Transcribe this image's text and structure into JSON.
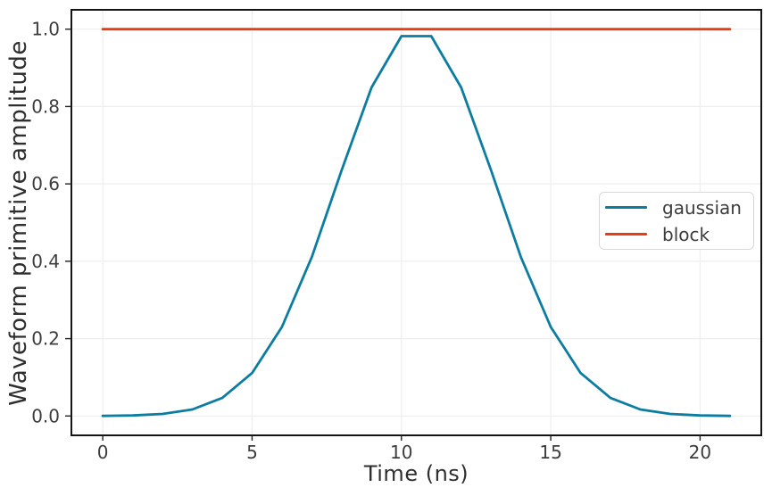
{
  "chart_data": {
    "type": "line",
    "title": "",
    "xlabel": "Time (ns)",
    "ylabel": "Waveform primitive amplitude",
    "x": [
      0,
      1,
      2,
      3,
      4,
      5,
      6,
      7,
      8,
      9,
      10,
      11,
      12,
      13,
      14,
      15,
      16,
      17,
      18,
      19,
      20,
      21
    ],
    "series": [
      {
        "name": "gaussian",
        "color": "#0c7da1",
        "values": [
          0.0003,
          0.0014,
          0.0053,
          0.0169,
          0.0466,
          0.1113,
          0.2301,
          0.4111,
          0.6354,
          0.8494,
          0.982,
          0.982,
          0.8494,
          0.6354,
          0.4111,
          0.2301,
          0.1113,
          0.0466,
          0.0169,
          0.0053,
          0.0014,
          0.0003
        ]
      },
      {
        "name": "block",
        "color": "#e73d13",
        "values": [
          1,
          1,
          1,
          1,
          1,
          1,
          1,
          1,
          1,
          1,
          1,
          1,
          1,
          1,
          1,
          1,
          1,
          1,
          1,
          1,
          1,
          1
        ]
      }
    ],
    "xlim": [
      -1.05,
      22.05
    ],
    "ylim": [
      -0.05,
      1.05
    ],
    "xticks": [
      0,
      5,
      10,
      15,
      20
    ],
    "xtick_labels": [
      "0",
      "5",
      "10",
      "15",
      "20"
    ],
    "yticks": [
      0,
      0.2,
      0.4,
      0.6,
      0.8,
      1
    ],
    "ytick_labels": [
      "0.0",
      "0.2",
      "0.4",
      "0.6",
      "0.8",
      "1.0"
    ],
    "grid": true,
    "legend_position": "center right"
  },
  "colors": {
    "background": "#ffffff",
    "grid": "#eeeeee",
    "spine": "#141414",
    "tick_mark": "#222222",
    "tick_text": "#3d3d3d",
    "label_text": "#2e2e2e",
    "legend_border": "#d8d8d8"
  }
}
